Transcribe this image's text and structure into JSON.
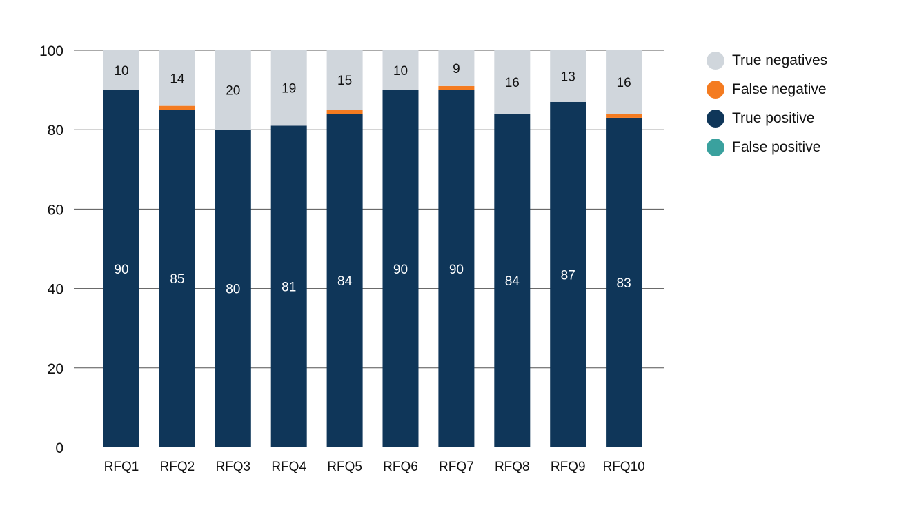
{
  "chart_data": {
    "type": "bar",
    "stacked": true,
    "categories": [
      "RFQ1",
      "RFQ2",
      "RFQ3",
      "RFQ4",
      "RFQ5",
      "RFQ6",
      "RFQ7",
      "RFQ8",
      "RFQ9",
      "RFQ10"
    ],
    "series": [
      {
        "name": "True positive",
        "color": "#0f3659",
        "values": [
          90,
          85,
          80,
          81,
          84,
          90,
          90,
          84,
          87,
          83
        ],
        "label_color": "#ffffff"
      },
      {
        "name": "False positive",
        "color": "#3aa19e",
        "values": [
          0,
          0,
          0,
          0,
          0,
          0,
          0,
          0,
          0,
          0
        ]
      },
      {
        "name": "False negative",
        "color": "#f47b20",
        "values": [
          0,
          1,
          0,
          0,
          1,
          0,
          1,
          0,
          0,
          1
        ]
      },
      {
        "name": "True negatives",
        "color": "#d0d6dc",
        "values": [
          10,
          14,
          20,
          19,
          15,
          10,
          9,
          16,
          13,
          16
        ],
        "label_color": "#111111"
      }
    ],
    "legend_order": [
      "True negatives",
      "False negative",
      "True positive",
      "False positive"
    ],
    "ylim": [
      0,
      100
    ],
    "yticks": [
      0,
      20,
      40,
      60,
      80,
      100
    ],
    "grid": true,
    "legend_position": "right",
    "title": "",
    "xlabel": "",
    "ylabel": ""
  }
}
